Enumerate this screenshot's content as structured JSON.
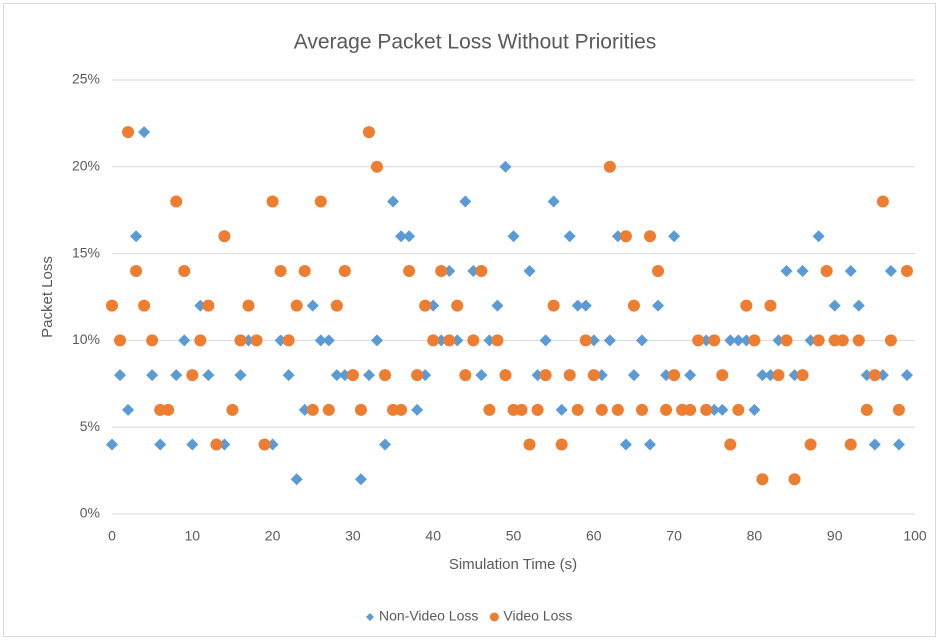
{
  "chart_data": {
    "type": "scatter",
    "title": "Average Packet Loss Without Priorities",
    "x_label": "Simulation Time (s)",
    "y_label": "Packet Loss",
    "x": [
      0,
      1,
      2,
      3,
      4,
      5,
      6,
      7,
      8,
      9,
      10,
      11,
      12,
      13,
      14,
      15,
      16,
      17,
      18,
      19,
      20,
      21,
      22,
      23,
      24,
      25,
      26,
      27,
      28,
      29,
      30,
      31,
      32,
      33,
      34,
      35,
      36,
      37,
      38,
      39,
      40,
      41,
      42,
      43,
      44,
      45,
      46,
      47,
      48,
      49,
      50,
      51,
      52,
      53,
      54,
      55,
      56,
      57,
      58,
      59,
      60,
      61,
      62,
      63,
      64,
      65,
      66,
      67,
      68,
      69,
      70,
      71,
      72,
      73,
      74,
      75,
      76,
      77,
      78,
      79,
      80,
      81,
      82,
      83,
      84,
      85,
      86,
      87,
      88,
      89,
      90,
      91,
      92,
      93,
      94,
      95,
      96,
      97,
      98,
      99
    ],
    "series": [
      {
        "name": "Non-Video Loss",
        "color": "#5b9bd5",
        "marker": "diamond",
        "values": [
          4,
          8,
          6,
          16,
          22,
          8,
          4,
          6,
          8,
          10,
          4,
          12,
          8,
          4,
          4,
          6,
          8,
          10,
          10,
          4,
          4,
          10,
          8,
          2,
          6,
          12,
          10,
          10,
          8,
          8,
          8,
          2,
          8,
          10,
          4,
          18,
          16,
          16,
          6,
          8,
          12,
          10,
          14,
          10,
          18,
          14,
          8,
          10,
          12,
          20,
          16,
          6,
          14,
          8,
          10,
          18,
          6,
          16,
          12,
          12,
          10,
          8,
          10,
          16,
          4,
          8,
          10,
          4,
          12,
          8,
          16,
          6,
          8,
          10,
          10,
          6,
          6,
          10,
          10,
          10,
          6,
          8,
          8,
          10,
          14,
          8,
          14,
          10,
          16,
          14,
          12,
          10,
          14,
          12,
          8,
          4,
          8,
          14,
          4,
          8
        ]
      },
      {
        "name": "Video Loss",
        "color": "#ed7d31",
        "marker": "circle",
        "values": [
          12,
          10,
          22,
          14,
          12,
          10,
          6,
          6,
          18,
          14,
          8,
          10,
          12,
          4,
          16,
          6,
          10,
          12,
          10,
          4,
          18,
          14,
          10,
          12,
          14,
          6,
          18,
          6,
          12,
          14,
          8,
          6,
          22,
          20,
          8,
          6,
          6,
          14,
          8,
          12,
          10,
          14,
          10,
          12,
          8,
          10,
          14,
          6,
          10,
          8,
          6,
          6,
          4,
          6,
          8,
          12,
          4,
          8,
          6,
          10,
          8,
          6,
          20,
          6,
          16,
          12,
          6,
          16,
          14,
          6,
          8,
          6,
          6,
          10,
          6,
          10,
          8,
          4,
          6,
          12,
          10,
          2,
          12,
          8,
          10,
          2,
          8,
          4,
          10,
          14,
          10,
          10,
          4,
          10,
          6,
          8,
          18,
          10,
          6,
          14
        ]
      }
    ],
    "xlim": [
      0,
      100
    ],
    "xticks": [
      0,
      10,
      20,
      30,
      40,
      50,
      60,
      70,
      80,
      90,
      100
    ],
    "ylim": [
      0,
      25
    ],
    "yticks": [
      {
        "value": 0,
        "label": "0%"
      },
      {
        "value": 5,
        "label": "5%"
      },
      {
        "value": 10,
        "label": "10%"
      },
      {
        "value": 15,
        "label": "15%"
      },
      {
        "value": 20,
        "label": "20%"
      },
      {
        "value": 25,
        "label": "25%"
      }
    ],
    "grid": true,
    "legend": "bottom"
  }
}
